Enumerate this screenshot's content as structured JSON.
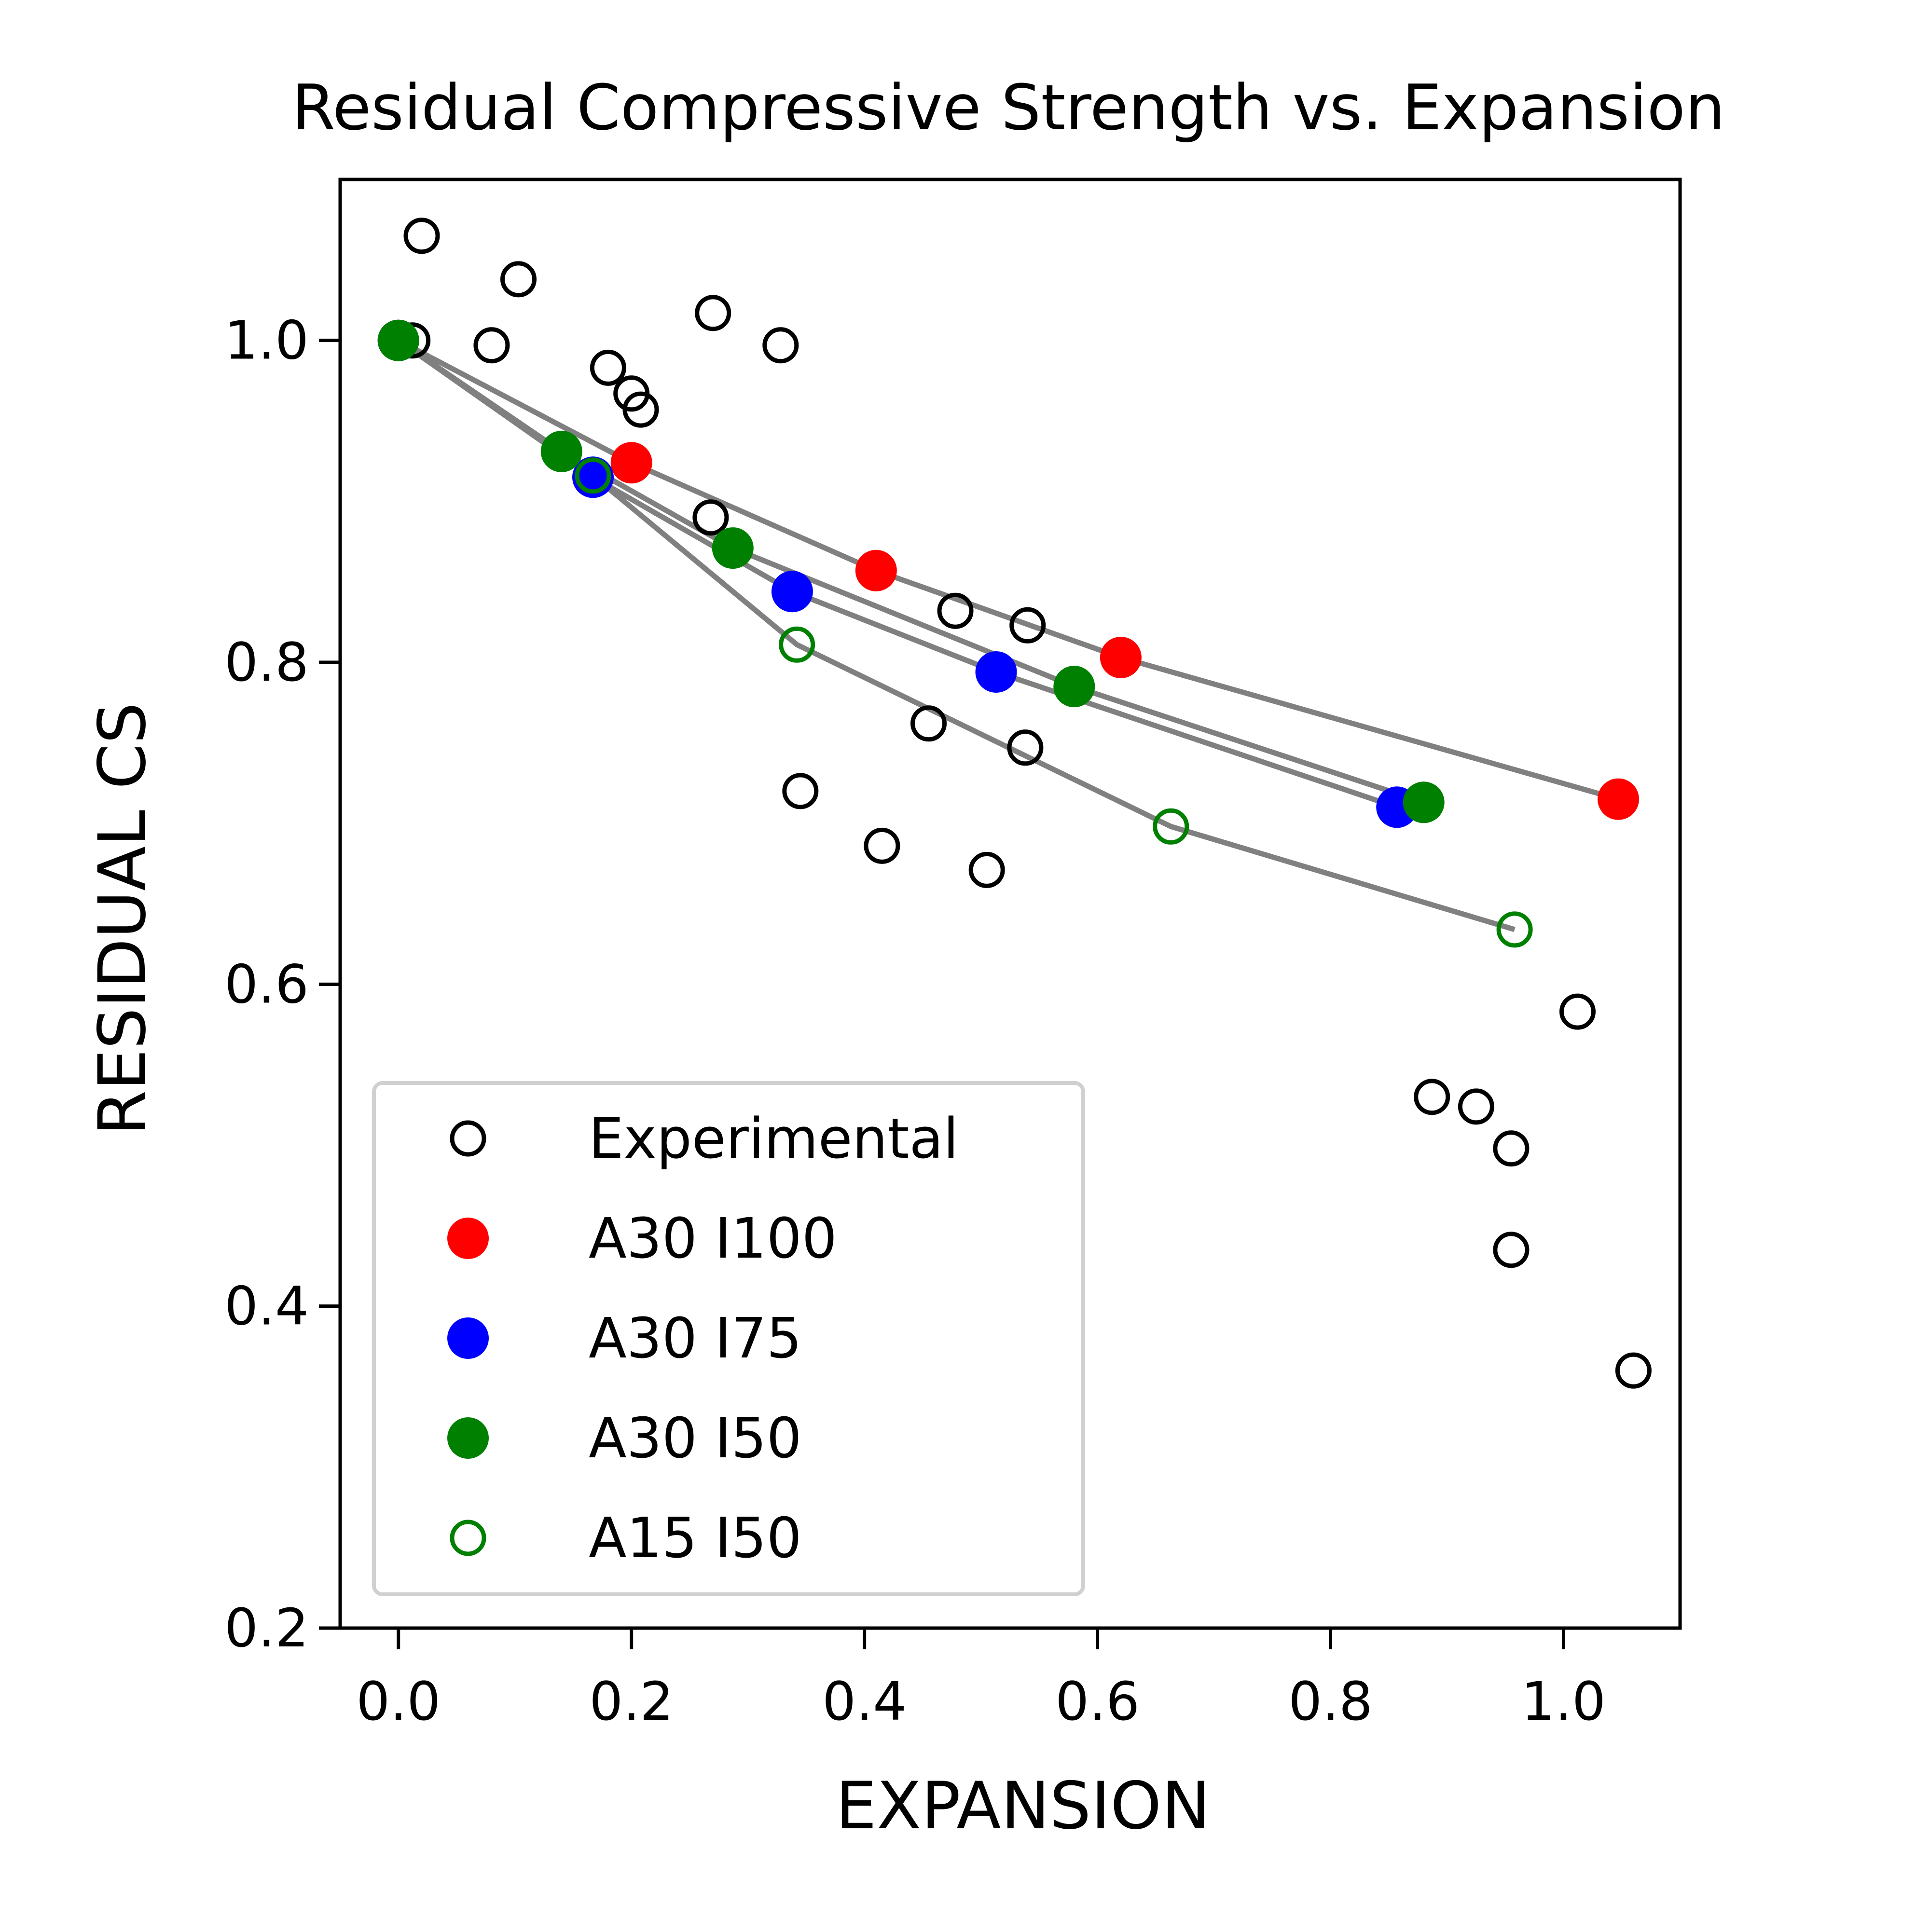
{
  "chart_data": {
    "type": "scatter",
    "title": "Residual Compressive Strength vs. Expansion",
    "xlabel": "EXPANSION",
    "ylabel": "RESIDUAL CS",
    "xlim": [
      -0.05,
      1.1
    ],
    "ylim": [
      0.2,
      1.1
    ],
    "xticks": [
      {
        "value": 0.0,
        "label": "0.0"
      },
      {
        "value": 0.2,
        "label": "0.2"
      },
      {
        "value": 0.4,
        "label": "0.4"
      },
      {
        "value": 0.6,
        "label": "0.6"
      },
      {
        "value": 0.8,
        "label": "0.8"
      },
      {
        "value": 1.0,
        "label": "1.0"
      }
    ],
    "yticks": [
      {
        "value": 0.2,
        "label": "0.2"
      },
      {
        "value": 0.4,
        "label": "0.4"
      },
      {
        "value": 0.6,
        "label": "0.6"
      },
      {
        "value": 0.8,
        "label": "0.8"
      },
      {
        "value": 1.0,
        "label": "1.0"
      }
    ],
    "grid": false,
    "legend_position": "lower-left",
    "line_color": "#808080",
    "series": [
      {
        "name": "Experimental",
        "color": "#000000",
        "marker": "open-circle",
        "connected": false,
        "points": [
          [
            0.02,
            1.065
          ],
          [
            0.103,
            1.038
          ],
          [
            0.012,
            1.0
          ],
          [
            0.08,
            0.997
          ],
          [
            0.27,
            1.017
          ],
          [
            0.328,
            0.997
          ],
          [
            0.18,
            0.983
          ],
          [
            0.2,
            0.967
          ],
          [
            0.208,
            0.957
          ],
          [
            0.268,
            0.89
          ],
          [
            0.478,
            0.832
          ],
          [
            0.54,
            0.823
          ],
          [
            0.455,
            0.762
          ],
          [
            0.538,
            0.747
          ],
          [
            0.345,
            0.72
          ],
          [
            0.415,
            0.686
          ],
          [
            0.505,
            0.671
          ],
          [
            1.012,
            0.583
          ],
          [
            0.887,
            0.53
          ],
          [
            0.925,
            0.524
          ],
          [
            0.955,
            0.498
          ],
          [
            0.955,
            0.435
          ],
          [
            1.06,
            0.36
          ]
        ]
      },
      {
        "name": "A30 I100",
        "color": "#ff0000",
        "marker": "filled-circle",
        "connected": true,
        "points": [
          [
            0.0,
            1.0
          ],
          [
            0.2,
            0.924
          ],
          [
            0.41,
            0.857
          ],
          [
            0.62,
            0.803
          ],
          [
            1.047,
            0.715
          ]
        ]
      },
      {
        "name": "A30 I75",
        "color": "#0000ff",
        "marker": "filled-circle",
        "connected": true,
        "points": [
          [
            0.0,
            1.0
          ],
          [
            0.167,
            0.915
          ],
          [
            0.338,
            0.844
          ],
          [
            0.513,
            0.794
          ],
          [
            0.857,
            0.71
          ]
        ]
      },
      {
        "name": "A30 I50",
        "color": "#008000",
        "marker": "filled-circle",
        "connected": true,
        "points": [
          [
            0.0,
            1.0
          ],
          [
            0.14,
            0.931
          ],
          [
            0.287,
            0.871
          ],
          [
            0.58,
            0.785
          ],
          [
            0.88,
            0.713
          ]
        ]
      },
      {
        "name": "A15 I50",
        "color": "#008000",
        "marker": "open-circle",
        "connected": true,
        "points": [
          [
            0.0,
            1.0
          ],
          [
            0.167,
            0.916
          ],
          [
            0.342,
            0.811
          ],
          [
            0.663,
            0.698
          ],
          [
            0.958,
            0.634
          ]
        ]
      }
    ]
  }
}
